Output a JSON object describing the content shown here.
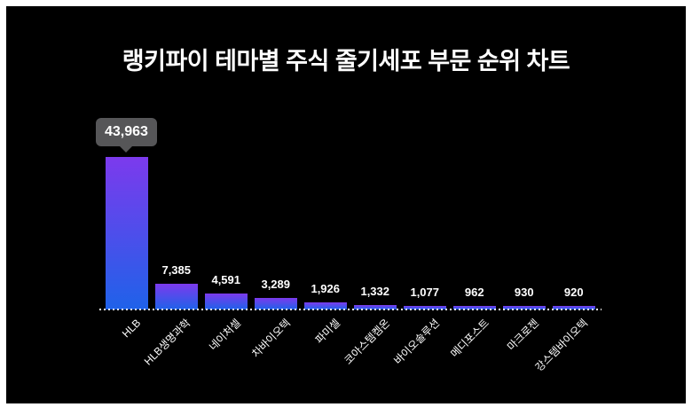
{
  "chart_data": {
    "type": "bar",
    "title": "랭키파이 테마별 주식 줄기세포 부문 순위 차트",
    "categories": [
      "HLB",
      "HLB생명과학",
      "네이처셀",
      "차바이오텍",
      "파미셀",
      "코아스템켐온",
      "바이오솔루션",
      "메디포스트",
      "마크로젠",
      "강스템바이오텍"
    ],
    "values": [
      43963,
      7385,
      4591,
      3289,
      1926,
      1332,
      1077,
      962,
      930,
      920
    ],
    "value_labels": [
      "43,963",
      "7,385",
      "4,591",
      "3,289",
      "1,926",
      "1,332",
      "1,077",
      "962",
      "930",
      "920"
    ],
    "xlabel": "",
    "ylabel": "",
    "ylim": [
      0,
      43963
    ],
    "grid": false,
    "legend": false,
    "x_axis_style": "white dotted baseline, labels rotated -45deg",
    "bar_color_style": "vertical gradient purple to blue"
  },
  "tooltip": {
    "value": "43,963",
    "target_category": "HLB"
  },
  "colors": {
    "page_background": "#ffffff",
    "chart_background": "#000000",
    "bar_gradient_top": "#7c3aed",
    "bar_gradient_bottom": "#1f62e9",
    "axis_line": "#ffffff",
    "label_text": "#ffffff",
    "title_text": "#ffffff",
    "tooltip_background": "#565658",
    "tooltip_text": "#ffffff"
  }
}
